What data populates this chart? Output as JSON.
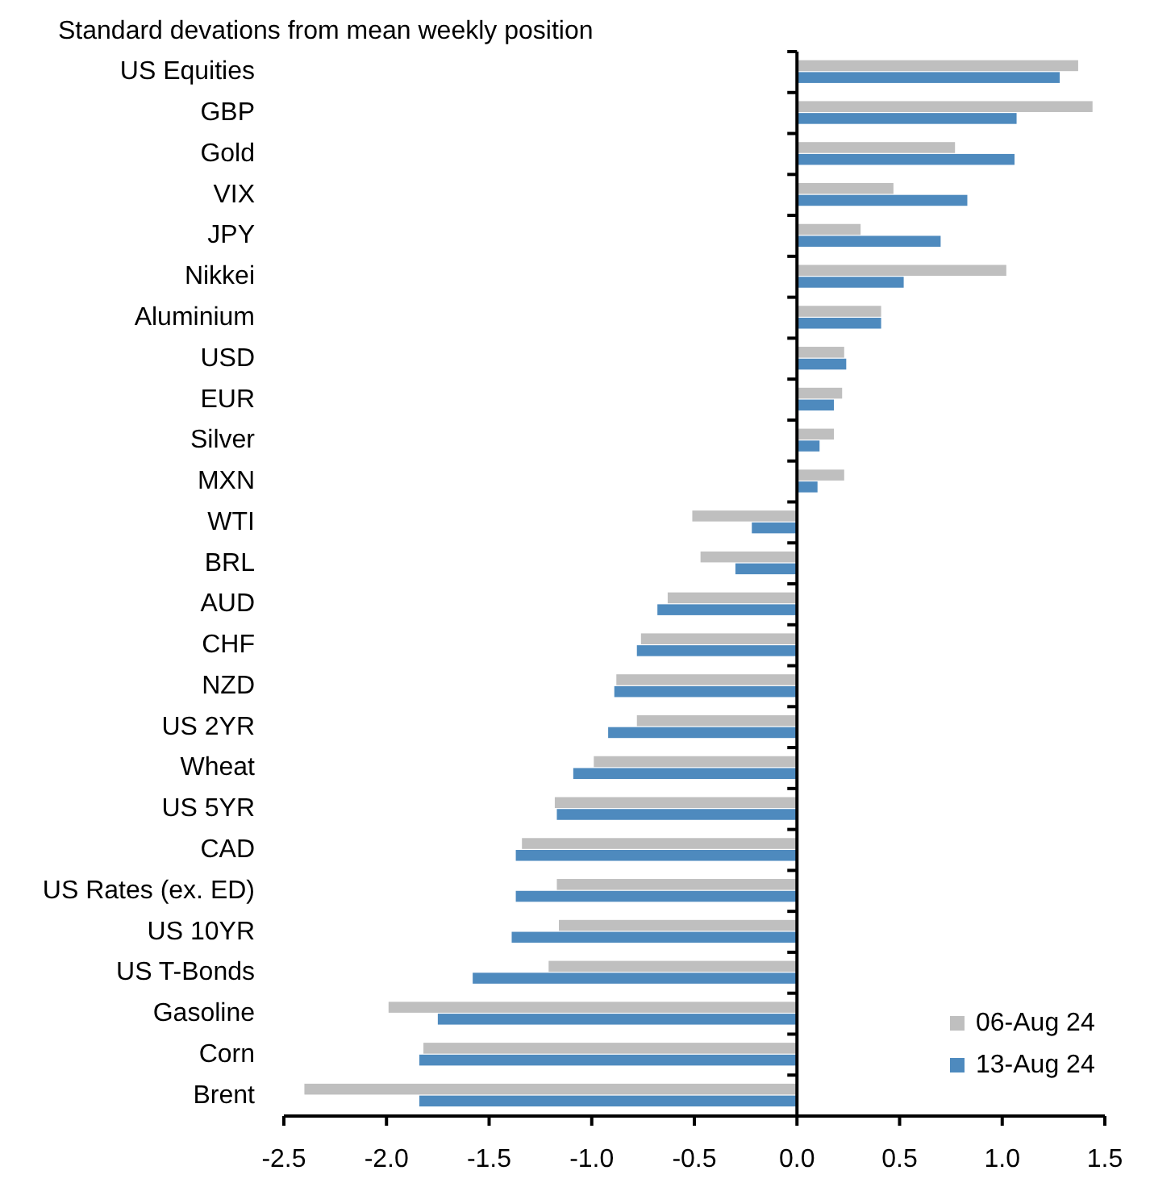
{
  "chart_data": {
    "type": "bar",
    "orientation": "horizontal",
    "title": "Standard devations from mean weekly position",
    "categories": [
      "US Equities",
      "GBP",
      "Gold",
      "VIX",
      "JPY",
      "Nikkei",
      "Aluminium",
      "USD",
      "EUR",
      "Silver",
      "MXN",
      "WTI",
      "BRL",
      "AUD",
      "CHF",
      "NZD",
      "US 2YR",
      "Wheat",
      "US 5YR",
      "CAD",
      "US Rates (ex. ED)",
      "US 10YR",
      "US T-Bonds",
      "Gasoline",
      "Corn",
      "Brent"
    ],
    "series": [
      {
        "name": "06-Aug 24",
        "color": "#bfbfbf",
        "values": [
          1.37,
          1.44,
          0.77,
          0.47,
          0.31,
          1.02,
          0.41,
          0.23,
          0.22,
          0.18,
          0.23,
          -0.51,
          -0.47,
          -0.63,
          -0.76,
          -0.88,
          -0.78,
          -0.99,
          -1.18,
          -1.34,
          -1.17,
          -1.16,
          -1.21,
          -1.99,
          -1.82,
          -2.4
        ]
      },
      {
        "name": "13-Aug 24",
        "color": "#4e8abe",
        "values": [
          1.28,
          1.07,
          1.06,
          0.83,
          0.7,
          0.52,
          0.41,
          0.24,
          0.18,
          0.11,
          0.1,
          -0.22,
          -0.3,
          -0.68,
          -0.78,
          -0.89,
          -0.92,
          -1.09,
          -1.17,
          -1.37,
          -1.37,
          -1.39,
          -1.58,
          -1.75,
          -1.84,
          -1.84
        ]
      }
    ],
    "xlim": [
      -2.5,
      1.5
    ],
    "xticks": [
      -2.5,
      {
        "value": -2,
        "label": "-2.0"
      },
      -1.5,
      {
        "value": -1,
        "label": "-1.0"
      },
      -0.5,
      {
        "value": 0,
        "label": "0.0"
      },
      0.5,
      {
        "value": 1,
        "label": "1.0"
      },
      1.5
    ],
    "legend": "bottom right"
  }
}
